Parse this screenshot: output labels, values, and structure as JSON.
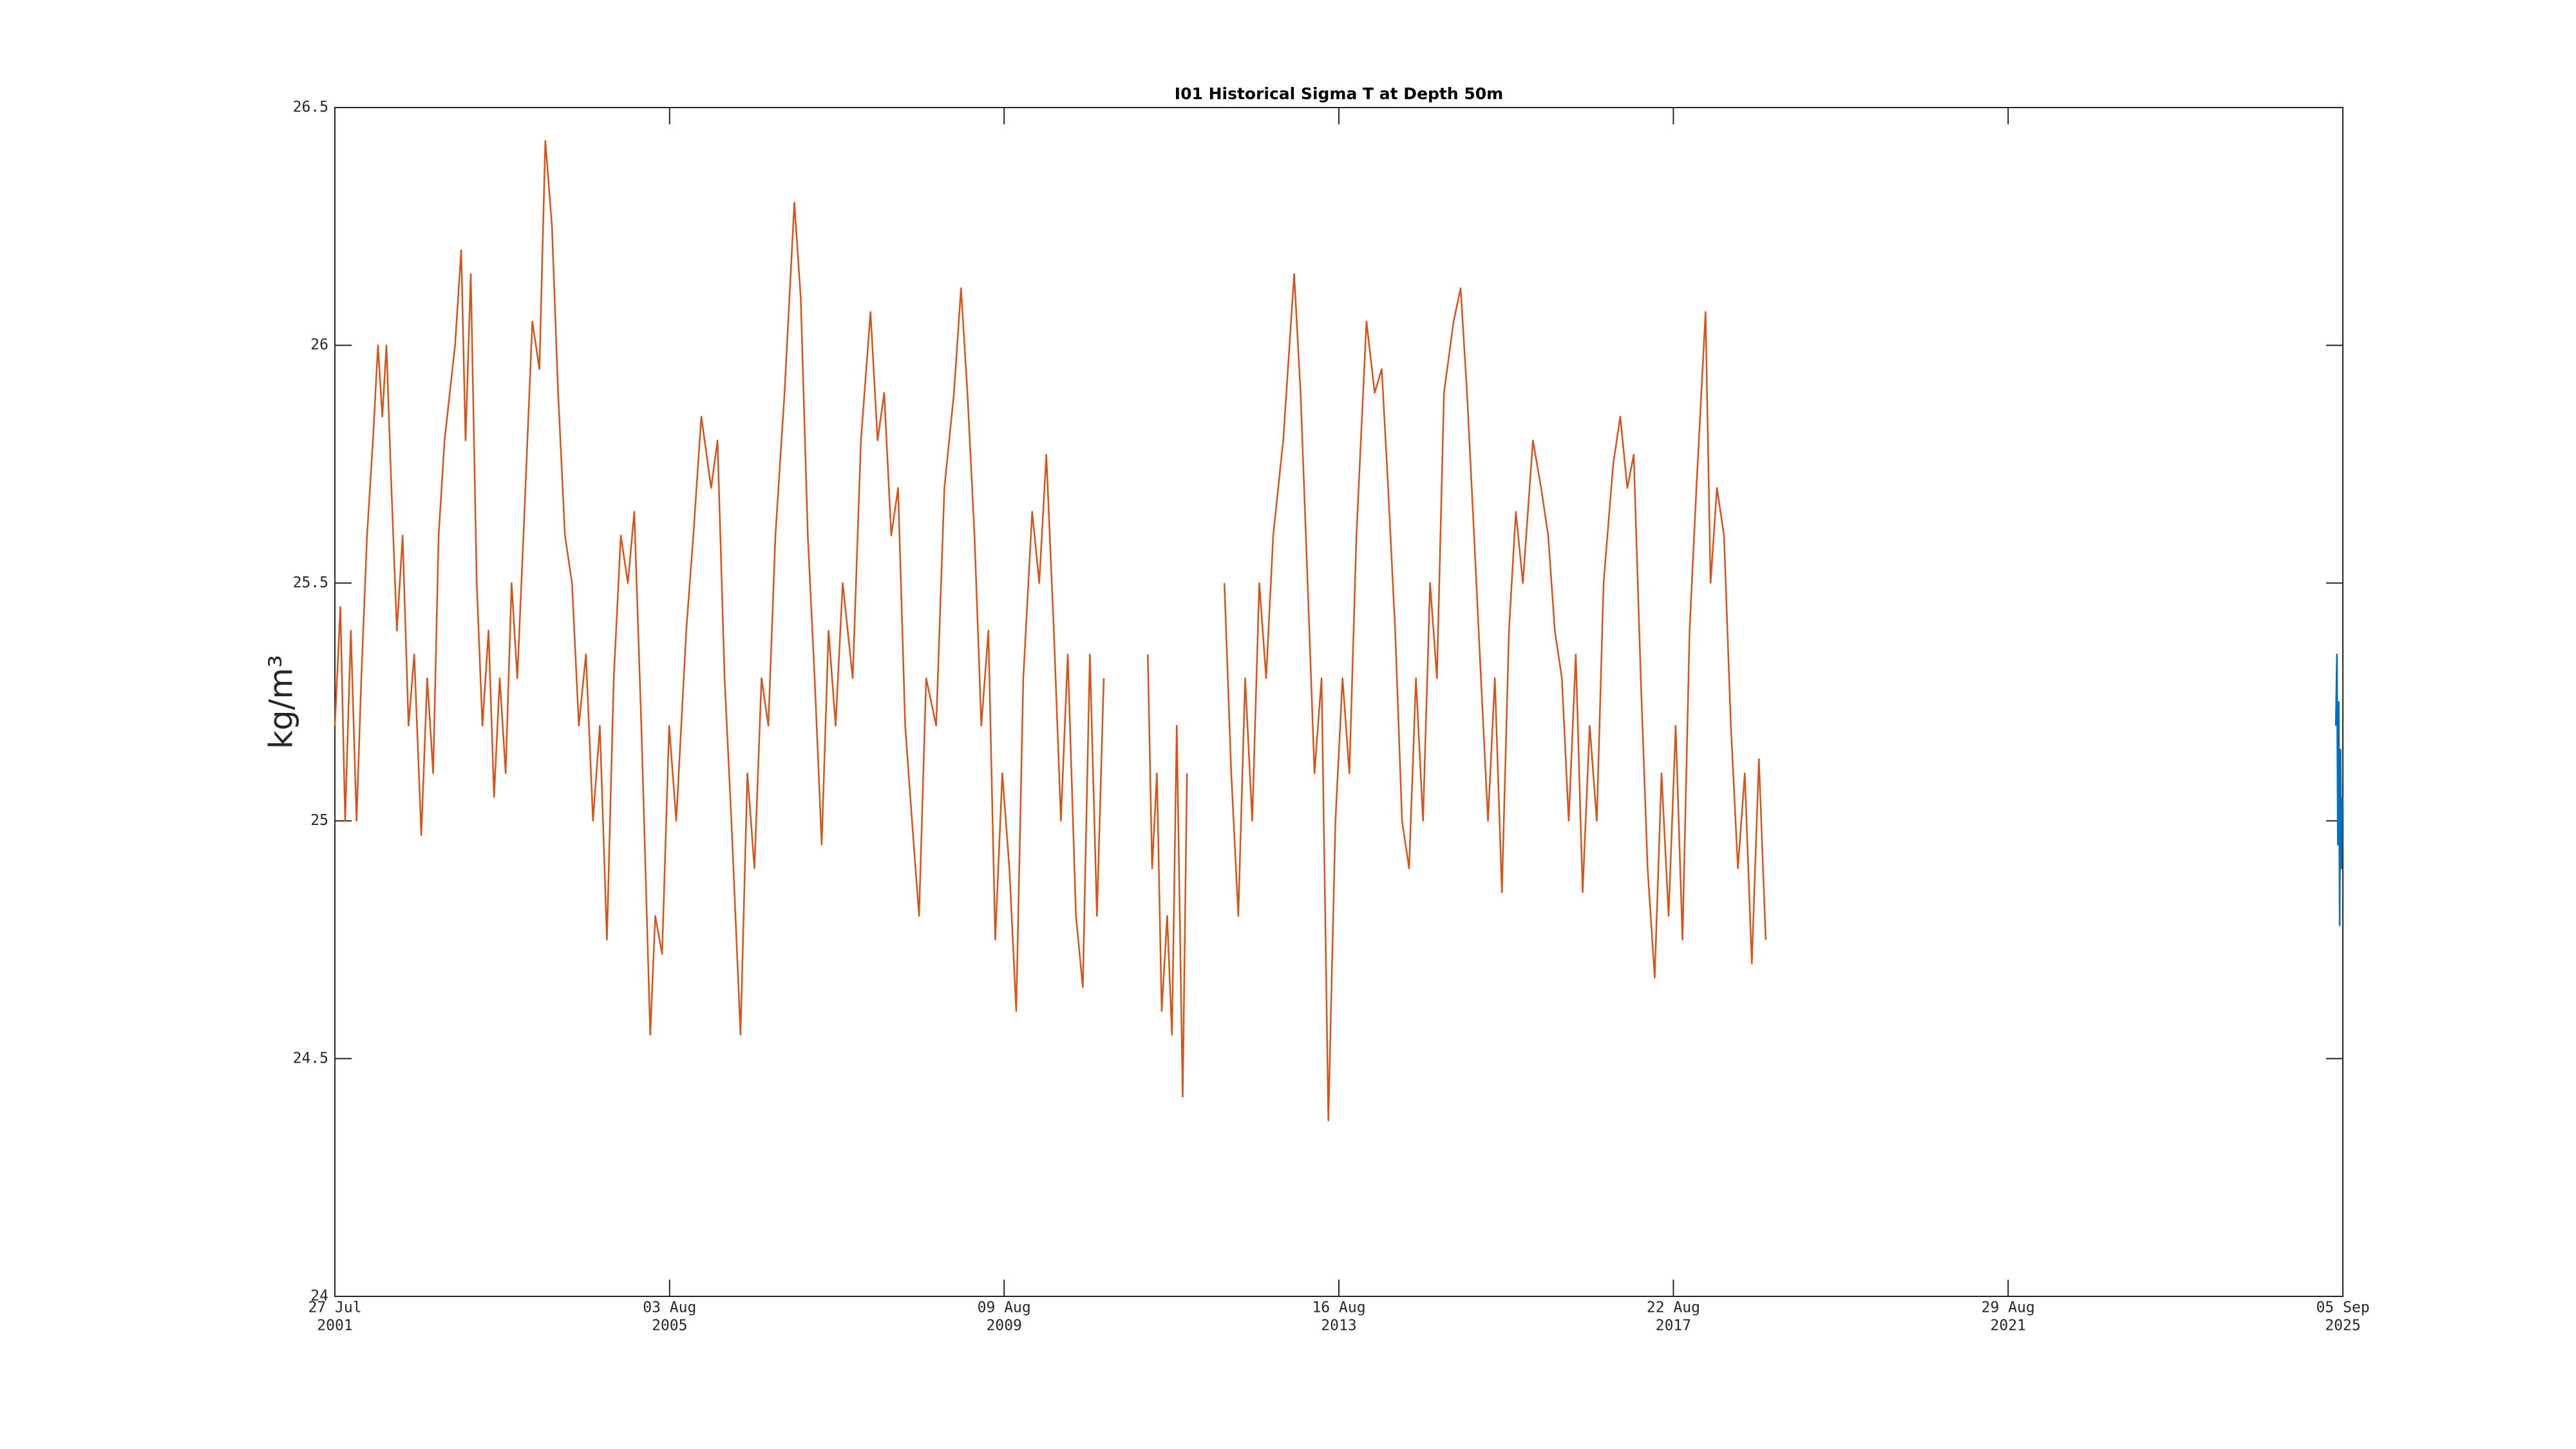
{
  "chart_data": {
    "type": "line",
    "title": "I01 Historical Sigma T at Depth 50m",
    "y_label": "kg/m³",
    "xlim": [
      "2001-07-27",
      "2025-09-05"
    ],
    "xticks": [
      {
        "value": "2001-07-27",
        "label": [
          "27 Jul",
          "2001"
        ]
      },
      {
        "value": "2005-08-03",
        "label": [
          "03 Aug",
          "2005"
        ]
      },
      {
        "value": "2009-08-09",
        "label": [
          "09 Aug",
          "2009"
        ]
      },
      {
        "value": "2013-08-16",
        "label": [
          "16 Aug",
          "2013"
        ]
      },
      {
        "value": "2017-08-22",
        "label": [
          "22 Aug",
          "2017"
        ]
      },
      {
        "value": "2021-08-29",
        "label": [
          "29 Aug",
          "2021"
        ]
      },
      {
        "value": "2025-09-05",
        "label": [
          "05 Sep",
          "2025"
        ]
      }
    ],
    "ylim": [
      24,
      26.5
    ],
    "yticks": [
      24,
      24.5,
      25,
      25.5,
      26,
      26.5
    ],
    "series": [
      {
        "color": "#d95319",
        "x": [
          "2001-07-27",
          "2001-08-20",
          "2001-09-10",
          "2001-10-05",
          "2001-10-30",
          "2001-11-20",
          "2001-12-15",
          "2002-01-10",
          "2002-02-01",
          "2002-02-20",
          "2002-03-10",
          "2002-04-01",
          "2002-04-25",
          "2002-05-20",
          "2002-06-15",
          "2002-07-10",
          "2002-08-10",
          "2002-09-05",
          "2002-10-01",
          "2002-10-25",
          "2002-11-20",
          "2003-01-05",
          "2003-02-01",
          "2003-02-20",
          "2003-03-15",
          "2003-04-10",
          "2003-05-05",
          "2003-06-01",
          "2003-06-25",
          "2003-07-20",
          "2003-08-15",
          "2003-09-10",
          "2003-10-05",
          "2003-11-01",
          "2003-12-10",
          "2004-01-10",
          "2004-02-05",
          "2004-03-05",
          "2004-04-01",
          "2004-05-01",
          "2004-06-01",
          "2004-07-01",
          "2004-08-01",
          "2004-09-01",
          "2004-10-01",
          "2004-11-01",
          "2004-12-01",
          "2005-01-01",
          "2005-02-01",
          "2005-03-01",
          "2005-04-01",
          "2005-05-10",
          "2005-06-01",
          "2005-07-01",
          "2005-08-01",
          "2005-09-01",
          "2005-10-15",
          "2005-11-15",
          "2005-12-20",
          "2006-02-01",
          "2006-03-01",
          "2006-04-01",
          "2006-05-01",
          "2006-06-10",
          "2006-07-10",
          "2006-08-10",
          "2006-09-10",
          "2006-10-10",
          "2006-11-10",
          "2006-12-20",
          "2007-02-01",
          "2007-03-01",
          "2007-04-01",
          "2007-05-01",
          "2007-06-01",
          "2007-07-01",
          "2007-08-01",
          "2007-09-01",
          "2007-10-15",
          "2007-11-20",
          "2008-01-01",
          "2008-02-01",
          "2008-03-01",
          "2008-04-01",
          "2008-05-01",
          "2008-06-01",
          "2008-07-01",
          "2008-08-01",
          "2008-09-01",
          "2008-10-15",
          "2008-11-20",
          "2009-01-01",
          "2009-02-01",
          "2009-03-01",
          "2009-04-01",
          "2009-05-01",
          "2009-06-01",
          "2009-07-01",
          "2009-08-01",
          "2009-09-01",
          "2009-10-01",
          "2009-11-01",
          "2009-12-10",
          "2010-01-10",
          "2010-02-10",
          "2010-03-15",
          "2010-04-15",
          "2010-05-15",
          "2010-06-20",
          "2010-07-20",
          "2010-08-20",
          "2010-09-20",
          "2010-10-20",
          "2011-01-01",
          "2011-05-01",
          "2011-05-20",
          "2011-06-10",
          "2011-07-01",
          "2011-07-25",
          "2011-08-15",
          "2011-09-05",
          "2011-10-01",
          "2011-10-20",
          "2012-01-01",
          "2012-04-01",
          "2012-05-01",
          "2012-06-01",
          "2012-07-01",
          "2012-08-01",
          "2012-09-01",
          "2012-10-01",
          "2012-11-01",
          "2012-12-15",
          "2013-02-01",
          "2013-03-01",
          "2013-04-01",
          "2013-05-01",
          "2013-06-01",
          "2013-07-01",
          "2013-08-01",
          "2013-09-01",
          "2013-10-01",
          "2013-11-01",
          "2013-12-15",
          "2014-01-20",
          "2014-02-20",
          "2014-03-20",
          "2014-04-20",
          "2014-05-20",
          "2014-06-20",
          "2014-07-20",
          "2014-08-20",
          "2014-09-20",
          "2014-10-20",
          "2014-11-20",
          "2015-01-01",
          "2015-02-01",
          "2015-03-01",
          "2015-04-01",
          "2015-05-01",
          "2015-06-01",
          "2015-07-01",
          "2015-08-01",
          "2015-09-01",
          "2015-10-01",
          "2015-11-01",
          "2015-12-15",
          "2016-01-20",
          "2016-02-20",
          "2016-03-20",
          "2016-04-20",
          "2016-05-20",
          "2016-06-20",
          "2016-07-20",
          "2016-08-20",
          "2016-09-20",
          "2016-10-20",
          "2016-12-01",
          "2017-01-01",
          "2017-02-01",
          "2017-03-01",
          "2017-04-01",
          "2017-05-01",
          "2017-06-01",
          "2017-07-01",
          "2017-08-01",
          "2017-09-01",
          "2017-10-01",
          "2017-11-01",
          "2017-12-01",
          "2018-01-10",
          "2018-02-01",
          "2018-03-01",
          "2018-04-01",
          "2018-05-01",
          "2018-06-01",
          "2018-07-01",
          "2018-08-01",
          "2018-09-01",
          "2018-10-01"
        ],
        "values": [
          25.2,
          25.45,
          25.0,
          25.4,
          25.0,
          25.3,
          25.6,
          25.8,
          26.0,
          25.85,
          26.0,
          25.7,
          25.4,
          25.6,
          25.2,
          25.35,
          24.97,
          25.3,
          25.1,
          25.6,
          25.8,
          26.0,
          26.2,
          25.8,
          26.15,
          25.5,
          25.2,
          25.4,
          25.05,
          25.3,
          25.1,
          25.5,
          25.3,
          25.6,
          26.05,
          25.95,
          26.43,
          26.25,
          25.9,
          25.6,
          25.5,
          25.2,
          25.35,
          25.0,
          25.2,
          24.75,
          25.3,
          25.6,
          25.5,
          25.65,
          25.2,
          24.55,
          24.8,
          24.72,
          25.2,
          25.0,
          25.4,
          25.6,
          25.85,
          25.7,
          25.8,
          25.3,
          25.0,
          24.55,
          25.1,
          24.9,
          25.3,
          25.2,
          25.6,
          25.9,
          26.3,
          26.1,
          25.6,
          25.3,
          24.95,
          25.4,
          25.2,
          25.5,
          25.3,
          25.8,
          26.07,
          25.8,
          25.9,
          25.6,
          25.7,
          25.2,
          25.0,
          24.8,
          25.3,
          25.2,
          25.7,
          25.9,
          26.12,
          25.9,
          25.6,
          25.2,
          25.4,
          24.75,
          25.1,
          24.9,
          24.6,
          25.3,
          25.65,
          25.5,
          25.77,
          25.4,
          25.0,
          25.35,
          24.8,
          24.65,
          25.35,
          24.8,
          25.3,
          null,
          25.35,
          24.9,
          25.1,
          24.6,
          24.8,
          24.55,
          25.2,
          24.42,
          25.1,
          null,
          25.5,
          25.1,
          24.8,
          25.3,
          25.0,
          25.5,
          25.3,
          25.6,
          25.8,
          26.15,
          25.9,
          25.5,
          25.1,
          25.3,
          24.37,
          25.0,
          25.3,
          25.1,
          25.6,
          26.05,
          25.9,
          25.95,
          25.7,
          25.4,
          25.0,
          24.9,
          25.3,
          25.0,
          25.5,
          25.3,
          25.9,
          26.05,
          26.12,
          25.9,
          25.6,
          25.3,
          25.0,
          25.3,
          24.85,
          25.4,
          25.65,
          25.5,
          25.8,
          25.7,
          25.6,
          25.4,
          25.3,
          25.0,
          25.35,
          24.85,
          25.2,
          25.0,
          25.5,
          25.75,
          25.85,
          25.7,
          25.77,
          25.3,
          24.9,
          24.67,
          25.1,
          24.8,
          25.2,
          24.75,
          25.4,
          25.7,
          26.07,
          25.5,
          25.7,
          25.6,
          25.2,
          24.9,
          25.1,
          24.7,
          25.13,
          24.75
        ]
      },
      {
        "color": "#0072bd",
        "x": [
          "2025-08-05",
          "2025-08-10",
          "2025-08-14",
          "2025-08-18",
          "2025-08-22",
          "2025-08-26",
          "2025-08-30",
          "2025-09-03"
        ],
        "values": [
          25.2,
          25.35,
          24.95,
          25.25,
          24.78,
          25.15,
          24.9,
          25.05
        ]
      }
    ]
  }
}
